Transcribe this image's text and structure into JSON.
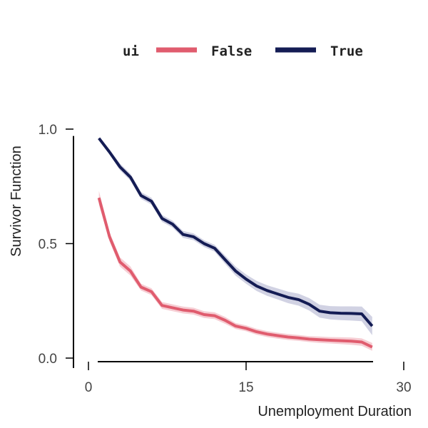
{
  "chart_data": {
    "type": "line",
    "title": "",
    "xlabel": "Unemployment Duration",
    "ylabel": "Survivor Function",
    "xlim": [
      0,
      30
    ],
    "ylim": [
      0,
      1.0
    ],
    "xticks": [
      0,
      15,
      30
    ],
    "xtick_labels": [
      "0",
      "15",
      "30"
    ],
    "yticks": [
      0.0,
      0.5,
      1.0
    ],
    "ytick_labels": [
      "0.0",
      "0.5",
      "1.0"
    ],
    "grid": false,
    "legend": {
      "title": "ui",
      "placement": "top-center"
    },
    "x": [
      1,
      2,
      3,
      4,
      5,
      6,
      7,
      8,
      9,
      10,
      11,
      12,
      13,
      14,
      15,
      16,
      17,
      18,
      19,
      20,
      21,
      22,
      23,
      24,
      25,
      26,
      27
    ],
    "series": [
      {
        "name": "False",
        "color": "#e05c6e",
        "band_color": "#f5c6cd",
        "values": [
          0.7,
          0.53,
          0.42,
          0.38,
          0.31,
          0.29,
          0.23,
          0.22,
          0.21,
          0.205,
          0.19,
          0.185,
          0.165,
          0.14,
          0.13,
          0.115,
          0.105,
          0.098,
          0.092,
          0.088,
          0.083,
          0.08,
          0.078,
          0.076,
          0.074,
          0.07,
          0.048
        ],
        "lower": [
          0.67,
          0.51,
          0.4,
          0.36,
          0.295,
          0.275,
          0.215,
          0.205,
          0.195,
          0.19,
          0.175,
          0.17,
          0.15,
          0.127,
          0.117,
          0.102,
          0.092,
          0.085,
          0.079,
          0.075,
          0.07,
          0.066,
          0.064,
          0.061,
          0.058,
          0.054,
          0.032
        ],
        "upper": [
          0.73,
          0.55,
          0.44,
          0.4,
          0.325,
          0.305,
          0.245,
          0.235,
          0.225,
          0.22,
          0.205,
          0.2,
          0.18,
          0.153,
          0.143,
          0.128,
          0.118,
          0.111,
          0.105,
          0.101,
          0.096,
          0.094,
          0.092,
          0.091,
          0.09,
          0.086,
          0.066
        ]
      },
      {
        "name": "True",
        "color": "#141c54",
        "band_color": "#c9cade",
        "values": [
          0.96,
          0.9,
          0.835,
          0.79,
          0.71,
          0.685,
          0.61,
          0.585,
          0.54,
          0.53,
          0.5,
          0.48,
          0.43,
          0.38,
          0.345,
          0.315,
          0.295,
          0.28,
          0.265,
          0.255,
          0.235,
          0.205,
          0.198,
          0.196,
          0.195,
          0.193,
          0.14
        ],
        "lower": [
          0.955,
          0.89,
          0.82,
          0.775,
          0.695,
          0.67,
          0.595,
          0.57,
          0.525,
          0.515,
          0.485,
          0.465,
          0.412,
          0.36,
          0.325,
          0.293,
          0.272,
          0.256,
          0.24,
          0.229,
          0.208,
          0.177,
          0.169,
          0.166,
          0.164,
          0.161,
          0.1
        ],
        "upper": [
          0.965,
          0.91,
          0.85,
          0.805,
          0.725,
          0.7,
          0.625,
          0.6,
          0.555,
          0.545,
          0.515,
          0.495,
          0.448,
          0.4,
          0.365,
          0.337,
          0.318,
          0.304,
          0.29,
          0.281,
          0.262,
          0.233,
          0.227,
          0.226,
          0.226,
          0.225,
          0.18
        ]
      }
    ]
  }
}
